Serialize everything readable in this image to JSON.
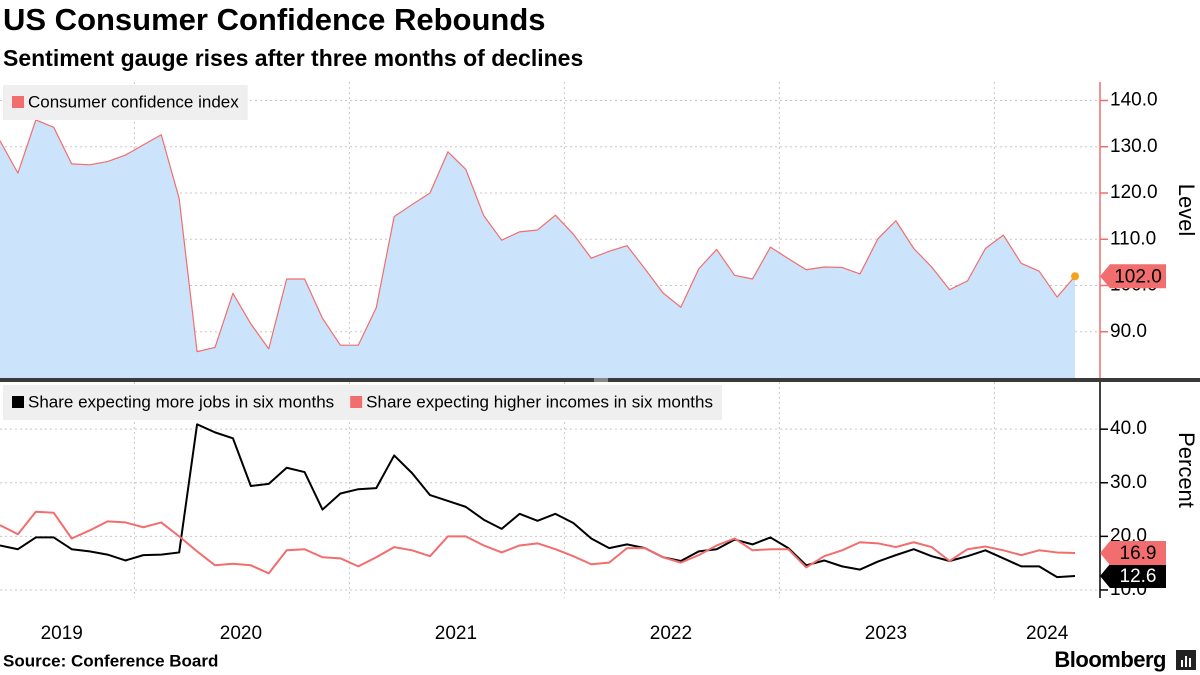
{
  "header": {
    "title": "US Consumer Confidence Rebounds",
    "subtitle": "Sentiment gauge rises after three months of declines"
  },
  "chart_data": [
    {
      "type": "area",
      "y_label": "Level",
      "grid": true,
      "legend": "top-left",
      "ylim": [
        80,
        144
      ],
      "yticks": [
        {
          "value": 90,
          "label": "90.0"
        },
        {
          "value": 100,
          "label": "100.0"
        },
        {
          "value": 110,
          "label": "110.0"
        },
        {
          "value": 120,
          "label": "120.0"
        },
        {
          "value": 130,
          "label": "130.0"
        },
        {
          "value": 140,
          "label": "140.0"
        }
      ],
      "series": [
        {
          "name": "Consumer confidence index",
          "color": "#f26d6d",
          "fill": "#cce4fb",
          "last_point_color": "#f7a21b",
          "values": [
            131.3,
            124.3,
            135.8,
            134.2,
            126.3,
            126.1,
            126.8,
            128.2,
            130.4,
            132.6,
            118.8,
            85.7,
            86.6,
            98.3,
            91.7,
            86.3,
            101.4,
            101.4,
            92.9,
            87.1,
            87.1,
            95.2,
            114.9,
            117.5,
            120.0,
            128.9,
            125.1,
            115.1,
            109.8,
            111.6,
            112.0,
            115.2,
            111.1,
            105.9,
            107.4,
            108.6,
            103.6,
            98.4,
            95.3,
            103.6,
            107.8,
            102.2,
            101.4,
            108.3,
            105.8,
            103.4,
            104.0,
            103.9,
            102.5,
            110.1,
            114.0,
            108.0,
            104.0,
            99.1,
            101.0,
            108.0,
            110.9,
            104.8,
            103.1,
            97.5,
            102.0
          ],
          "value_labels": [
            null,
            null,
            null,
            null,
            null,
            null,
            null,
            null,
            null,
            null,
            null,
            null,
            null,
            null,
            null,
            null,
            null,
            null,
            null,
            null,
            null,
            null,
            null,
            null,
            null,
            null,
            null,
            null,
            null,
            null,
            null,
            null,
            null,
            null,
            null,
            null,
            null,
            null,
            null,
            null,
            null,
            null,
            null,
            null,
            null,
            null,
            null,
            null,
            null,
            null,
            null,
            null,
            null,
            null,
            null,
            null,
            null,
            null,
            null,
            null,
            "102.0"
          ]
        }
      ]
    },
    {
      "type": "line",
      "y_label": "Percent",
      "grid": true,
      "legend": "top-left",
      "categories": [
        null,
        null,
        null,
        "2019",
        null,
        null,
        null,
        null,
        null,
        null,
        null,
        null,
        null,
        "2020",
        null,
        null,
        null,
        null,
        null,
        null,
        null,
        null,
        null,
        null,
        null,
        "2021",
        null,
        null,
        null,
        null,
        null,
        null,
        null,
        null,
        null,
        null,
        null,
        "2022",
        null,
        null,
        null,
        null,
        null,
        null,
        null,
        null,
        null,
        null,
        null,
        "2023",
        null,
        null,
        null,
        null,
        null,
        null,
        null,
        null,
        "2024",
        null,
        null
      ],
      "ylim": [
        8.5,
        48.8
      ],
      "yticks": [
        {
          "value": 10,
          "label": "10.0"
        },
        {
          "value": 20,
          "label": "20.0"
        },
        {
          "value": 30,
          "label": "30.0"
        },
        {
          "value": 40,
          "label": "40.0"
        }
      ],
      "series": [
        {
          "name": "Share expecting more jobs in six months",
          "color": "#000000",
          "values": [
            18.3,
            17.6,
            19.8,
            19.8,
            17.6,
            17.2,
            16.6,
            15.5,
            16.5,
            16.6,
            17.0,
            40.9,
            39.4,
            38.3,
            29.4,
            29.8,
            32.8,
            32.0,
            25.0,
            28.0,
            28.8,
            29.0,
            35.1,
            31.8,
            27.7,
            26.6,
            25.5,
            23.1,
            21.4,
            24.2,
            22.9,
            24.2,
            22.5,
            19.6,
            17.8,
            18.5,
            17.8,
            16.1,
            15.4,
            17.2,
            17.6,
            19.4,
            18.5,
            19.8,
            17.8,
            14.6,
            15.5,
            14.4,
            13.8,
            15.3,
            16.5,
            17.6,
            16.3,
            15.4,
            16.3,
            17.4,
            15.9,
            14.4,
            14.4,
            12.4,
            12.6
          ],
          "value_labels": [
            null,
            null,
            null,
            null,
            null,
            null,
            null,
            null,
            null,
            null,
            null,
            null,
            null,
            null,
            null,
            null,
            null,
            null,
            null,
            null,
            null,
            null,
            null,
            null,
            null,
            null,
            null,
            null,
            null,
            null,
            null,
            null,
            null,
            null,
            null,
            null,
            null,
            null,
            null,
            null,
            null,
            null,
            null,
            null,
            null,
            null,
            null,
            null,
            null,
            null,
            null,
            null,
            null,
            null,
            null,
            null,
            null,
            null,
            null,
            null,
            "12.6"
          ]
        },
        {
          "name": "Share expecting higher incomes in six months",
          "color": "#f26d6d",
          "values": [
            22.1,
            20.4,
            24.6,
            24.4,
            19.6,
            21.1,
            22.8,
            22.6,
            21.7,
            22.6,
            20.0,
            17.2,
            14.6,
            14.9,
            14.6,
            13.1,
            17.4,
            17.6,
            16.1,
            15.9,
            14.4,
            16.1,
            18.0,
            17.4,
            16.3,
            20.0,
            20.0,
            18.3,
            17.0,
            18.3,
            18.7,
            17.6,
            16.3,
            14.8,
            15.1,
            17.8,
            17.8,
            16.1,
            15.1,
            16.5,
            18.3,
            19.6,
            17.4,
            17.6,
            17.6,
            14.2,
            16.3,
            17.4,
            18.9,
            18.7,
            18.0,
            18.9,
            18.0,
            15.4,
            17.6,
            18.1,
            17.4,
            16.5,
            17.4,
            17.0,
            16.9
          ],
          "value_labels": [
            null,
            null,
            null,
            null,
            null,
            null,
            null,
            null,
            null,
            null,
            null,
            null,
            null,
            null,
            null,
            null,
            null,
            null,
            null,
            null,
            null,
            null,
            null,
            null,
            null,
            null,
            null,
            null,
            null,
            null,
            null,
            null,
            null,
            null,
            null,
            null,
            null,
            null,
            null,
            null,
            null,
            null,
            null,
            null,
            null,
            null,
            null,
            null,
            null,
            null,
            null,
            null,
            null,
            null,
            null,
            null,
            null,
            null,
            null,
            null,
            "16.9"
          ]
        }
      ]
    }
  ],
  "footer": {
    "source": "Source: Conference Board",
    "brand": "Bloomberg"
  }
}
